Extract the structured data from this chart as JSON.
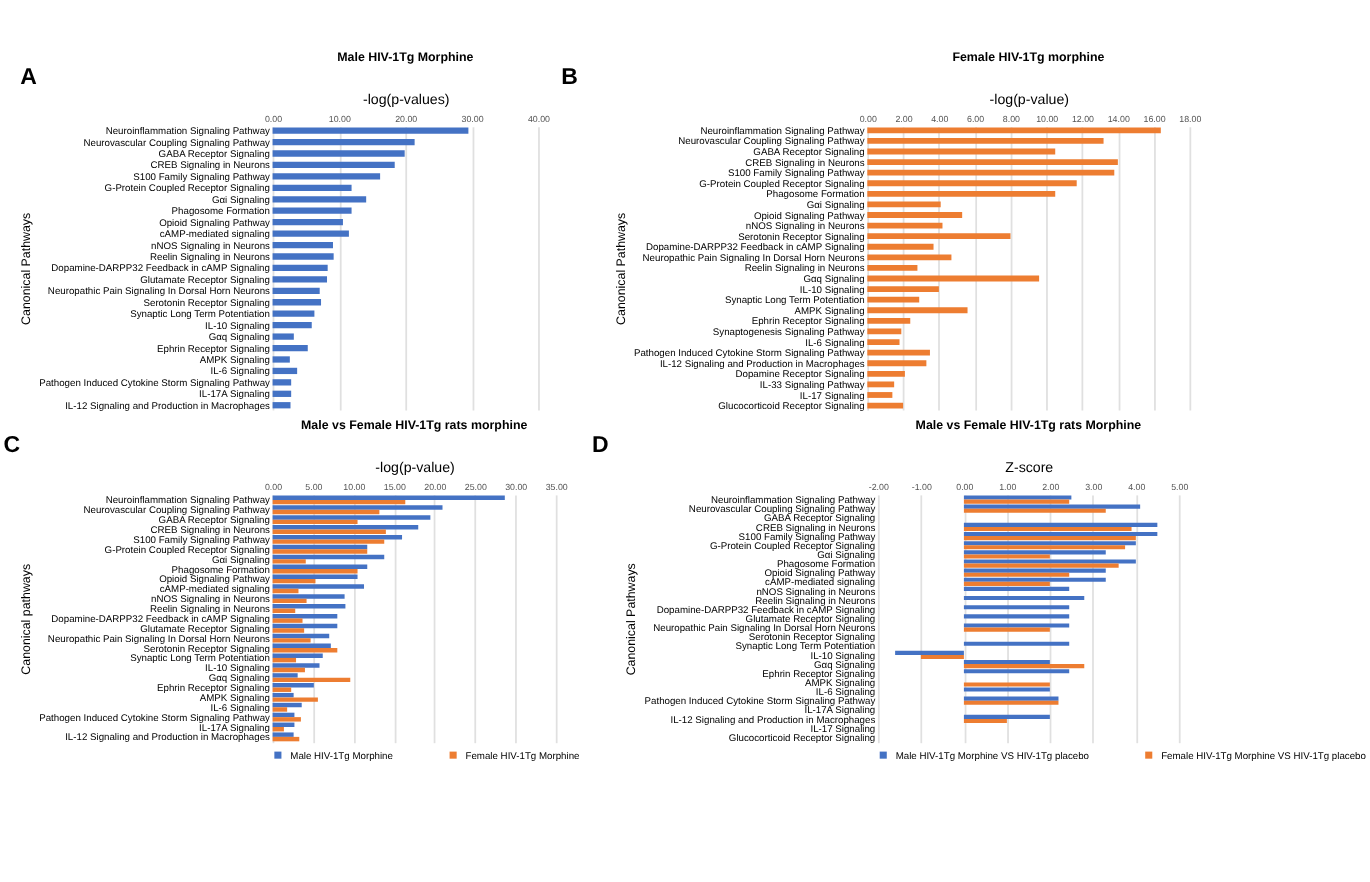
{
  "chart_data": [
    {
      "type": "bar",
      "orientation": "horizontal",
      "title": "Male HIV-1Tg Morphine",
      "xlabel": "-log(p-values)",
      "ylabel": "Canonical Pathways",
      "annotations": [
        "A"
      ],
      "grid": "x",
      "categories": [
        "Neuroinflammation Signaling Pathway",
        "Neurovascular Coupling Signaling Pathway",
        "GABA Receptor Signaling",
        "CREB Signaling in Neurons",
        "S100 Family Signaling Pathway",
        "G-Protein Coupled Receptor Signaling",
        "Gαi Signaling",
        "Phagosome Formation",
        "Opioid Signaling Pathway",
        "cAMP-mediated signaling",
        "nNOS Signaling in Neurons",
        "Reelin Signaling in Neurons",
        "Dopamine-DARPP32 Feedback in cAMP Signaling",
        "Glutamate Receptor Signaling",
        "Neuropathic Pain Signaling In Dorsal Horn Neurons",
        "Serotonin Receptor Signaling",
        "Synaptic Long Term Potentiation",
        "IL-10 Signaling",
        "Gαq Signaling",
        "Ephrin Receptor Signaling",
        "AMPK Signaling",
        "IL-6 Signaling",
        "Pathogen Induced Cytokine Storm Signaling Pathway",
        "IL-17A Signaling",
        "IL-12 Signaling and Production in Macrophages"
      ],
      "series": [
        {
          "color": "#4472c4",
          "values": [
            29.5,
            21.4,
            19.9,
            18.4,
            16.2,
            11.9,
            14.1,
            11.9,
            10.6,
            11.5,
            9.1,
            9.2,
            8.3,
            8.2,
            7.1,
            7.3,
            6.3,
            5.9,
            3.2,
            5.3,
            2.6,
            3.7,
            2.8,
            2.8,
            2.7
          ]
        }
      ],
      "xlim": [
        0,
        40
      ],
      "xticks": [
        {
          "value": 0,
          "label": "0.00"
        },
        {
          "value": 10,
          "label": "10.00"
        },
        {
          "value": 20,
          "label": "20.00"
        },
        {
          "value": 30,
          "label": "30.00"
        },
        {
          "value": 40,
          "label": "40.00"
        }
      ]
    },
    {
      "type": "bar",
      "orientation": "horizontal",
      "title": "Female HIV-1Tg morphine",
      "xlabel": "-log(p-value)",
      "ylabel": "Canonical Pathways",
      "annotations": [
        "B"
      ],
      "grid": "x",
      "categories": [
        "Neuroinflammation Signaling Pathway",
        "Neurovascular Coupling Signaling Pathway",
        "GABA Receptor Signaling",
        "CREB Signaling in Neurons",
        "S100 Family Signaling Pathway",
        "G-Protein Coupled Receptor Signaling",
        "Phagosome Formation",
        "Gαi Signaling",
        "Opioid Signaling Pathway",
        "nNOS Signaling in Neurons",
        "Serotonin Receptor Signaling",
        "Dopamine-DARPP32 Feedback in cAMP Signaling",
        "Neuropathic Pain Signaling In Dorsal Horn Neurons",
        "Reelin Signaling in Neurons",
        "Gαq Signaling",
        "IL-10 Signaling",
        "Synaptic Long Term Potentiation",
        "AMPK Signaling",
        "Ephrin Receptor Signaling",
        "Synaptogenesis Signaling Pathway",
        "IL-6 Signaling",
        "Pathogen Induced Cytokine Storm Signaling Pathway",
        "IL-12 Signaling and Production in Macrophages",
        "Dopamine Receptor Signaling",
        "IL-33 Signaling Pathway",
        "IL-17 Signaling",
        "Glucocorticoid Receptor Signaling"
      ],
      "series": [
        {
          "color": "#ed7d31",
          "values": [
            16.4,
            13.2,
            10.5,
            14.0,
            13.8,
            11.7,
            10.5,
            4.1,
            5.3,
            4.2,
            8.0,
            3.7,
            4.7,
            2.8,
            9.6,
            4.0,
            2.9,
            5.6,
            2.4,
            1.9,
            1.8,
            3.5,
            3.3,
            2.1,
            1.5,
            1.4,
            2.0
          ]
        }
      ],
      "xlim": [
        0,
        18
      ],
      "xticks": [
        {
          "value": 0,
          "label": "0.00"
        },
        {
          "value": 2,
          "label": "2.00"
        },
        {
          "value": 4,
          "label": "4.00"
        },
        {
          "value": 6,
          "label": "6.00"
        },
        {
          "value": 8,
          "label": "8.00"
        },
        {
          "value": 10,
          "label": "10.00"
        },
        {
          "value": 12,
          "label": "12.00"
        },
        {
          "value": 14,
          "label": "14.00"
        },
        {
          "value": 16,
          "label": "16.00"
        },
        {
          "value": 18,
          "label": "18.00"
        }
      ]
    },
    {
      "type": "bar",
      "orientation": "horizontal",
      "title": "Male vs Female HIV-1Tg rats morphine",
      "xlabel": "-log(p-value)",
      "ylabel": "Canonical pathways",
      "annotations": [
        "C"
      ],
      "grid": "x",
      "legend": "bottom",
      "categories": [
        "Neuroinflammation Signaling Pathway",
        "Neurovascular Coupling Signaling Pathway",
        "GABA Receptor Signaling",
        "CREB Signaling in Neurons",
        "S100 Family Signaling Pathway",
        "G-Protein Coupled Receptor Signaling",
        "Gαi Signaling",
        "Phagosome Formation",
        "Opioid Signaling Pathway",
        "cAMP-mediated signaling",
        "nNOS Signaling in Neurons",
        "Reelin Signaling in Neurons",
        "Dopamine-DARPP32 Feedback in cAMP Signaling",
        "Glutamate Receptor Signaling",
        "Neuropathic Pain Signaling In Dorsal Horn Neurons",
        "Serotonin Receptor Signaling",
        "Synaptic Long Term Potentiation",
        "IL-10 Signaling",
        "Gαq Signaling",
        "Ephrin Receptor Signaling",
        "AMPK Signaling",
        "IL-6 Signaling",
        "Pathogen Induced Cytokine Storm Signaling Pathway",
        "IL-17A Signaling",
        "IL-12 Signaling and Production in Macrophages"
      ],
      "series": [
        {
          "name": "Male HIV-1Tg Morphine",
          "color": "#4472c4",
          "values": [
            28.7,
            21.0,
            19.5,
            18.0,
            16.0,
            11.7,
            13.8,
            11.7,
            10.5,
            11.3,
            8.9,
            9.0,
            8.0,
            8.0,
            7.0,
            7.2,
            6.2,
            5.8,
            3.1,
            5.1,
            2.6,
            3.6,
            2.7,
            2.7,
            2.6
          ]
        },
        {
          "name": "Female HIV-1Tg Morphine",
          "color": "#ed7d31",
          "values": [
            16.4,
            13.2,
            10.5,
            14.0,
            13.8,
            11.7,
            4.1,
            10.5,
            5.3,
            3.2,
            4.2,
            2.8,
            3.7,
            3.9,
            4.7,
            8.0,
            2.9,
            4.0,
            9.6,
            2.3,
            5.6,
            1.8,
            3.5,
            1.4,
            3.3
          ]
        }
      ],
      "xlim": [
        0,
        35
      ],
      "xticks": [
        {
          "value": 0,
          "label": "0.00"
        },
        {
          "value": 5,
          "label": "5.00"
        },
        {
          "value": 10,
          "label": "10.00"
        },
        {
          "value": 15,
          "label": "15.00"
        },
        {
          "value": 20,
          "label": "20.00"
        },
        {
          "value": 25,
          "label": "25.00"
        },
        {
          "value": 30,
          "label": "30.00"
        },
        {
          "value": 35,
          "label": "35.00"
        }
      ]
    },
    {
      "type": "bar",
      "orientation": "horizontal",
      "title": "Male vs Female HIV-1Tg rats Morphine",
      "xlabel": "Z-score",
      "ylabel": "Canonical Pathways",
      "annotations": [
        "D"
      ],
      "grid": "x",
      "legend": "bottom",
      "categories": [
        "Neuroinflammation Signaling Pathway",
        "Neurovascular Coupling Signaling Pathway",
        "GABA Receptor Signaling",
        "CREB Signaling in Neurons",
        "S100 Family Signaling Pathway",
        "G-Protein Coupled Receptor Signaling",
        "Gαi Signaling",
        "Phagosome Formation",
        "Opioid Signaling Pathway",
        "cAMP-mediated signaling",
        "nNOS Signaling in Neurons",
        "Reelin Signaling in Neurons",
        "Dopamine-DARPP32 Feedback in cAMP Signaling",
        "Glutamate Receptor Signaling",
        "Neuropathic Pain Signaling In Dorsal Horn Neurons",
        "Serotonin Receptor Signaling",
        "Synaptic Long Term Potentiation",
        "IL-10 Signaling",
        "Gαq Signaling",
        "Ephrin Receptor Signaling",
        "AMPK Signaling",
        "IL-6 Signaling",
        "Pathogen Induced Cytokine Storm Signaling Pathway",
        "IL-17A Signaling",
        "IL-12 Signaling and Production in Macrophages",
        "IL-17 Signaling",
        "Glucocorticoid Receptor Signaling"
      ],
      "series": [
        {
          "name": "Male HIV-1Tg Morphine VS HIV-1Tg placebo",
          "color": "#4472c4",
          "values": [
            2.5,
            4.1,
            null,
            4.5,
            4.5,
            4.0,
            3.3,
            4.0,
            3.3,
            3.3,
            2.45,
            2.8,
            2.45,
            2.45,
            2.45,
            null,
            2.45,
            -1.6,
            2.0,
            2.45,
            null,
            2.0,
            2.2,
            null,
            2.0,
            null,
            null
          ]
        },
        {
          "name": "Female HIV-1Tg Morphine VS HIV-1Tg placebo",
          "color": "#ed7d31",
          "values": [
            2.45,
            3.3,
            null,
            3.9,
            4.0,
            3.75,
            2.0,
            3.6,
            2.45,
            2.0,
            null,
            null,
            null,
            null,
            2.0,
            null,
            null,
            -1.0,
            2.8,
            null,
            2.0,
            null,
            2.2,
            null,
            1.0,
            null,
            null
          ]
        }
      ],
      "xlim": [
        -2,
        5
      ],
      "xticks": [
        {
          "value": -2,
          "label": "-2.00"
        },
        {
          "value": -1,
          "label": "-1.00"
        },
        {
          "value": 0,
          "label": "0.00"
        },
        {
          "value": 1,
          "label": "1.00"
        },
        {
          "value": 2,
          "label": "2.00"
        },
        {
          "value": 3,
          "label": "3.00"
        },
        {
          "value": 4,
          "label": "4.00"
        },
        {
          "value": 5,
          "label": "5.00"
        }
      ]
    }
  ]
}
